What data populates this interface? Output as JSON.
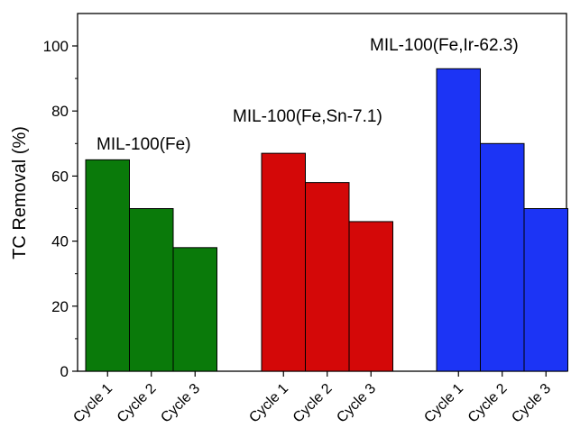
{
  "chart_data": {
    "type": "bar",
    "title": "",
    "xlabel": "",
    "ylabel": "TC Removal (%)",
    "ylim": [
      0,
      110
    ],
    "yticks": [
      0,
      20,
      40,
      60,
      80,
      100
    ],
    "grid": false,
    "groups": [
      {
        "name": "MIL-100(Fe)",
        "color": "#0a7a0a",
        "categories": [
          "Cycle 1",
          "Cycle 2",
          "Cycle 3"
        ],
        "values": [
          65,
          50,
          38
        ]
      },
      {
        "name": "MIL-100(Fe,Sn-7.1)",
        "color": "#d40808",
        "categories": [
          "Cycle 1",
          "Cycle 2",
          "Cycle 3"
        ],
        "values": [
          67,
          58,
          46
        ]
      },
      {
        "name": "MIL-100(Fe,Ir-62.3)",
        "color": "#1c34f5",
        "categories": [
          "Cycle 1",
          "Cycle 2",
          "Cycle 3"
        ],
        "values": [
          93,
          70,
          50
        ]
      }
    ]
  }
}
